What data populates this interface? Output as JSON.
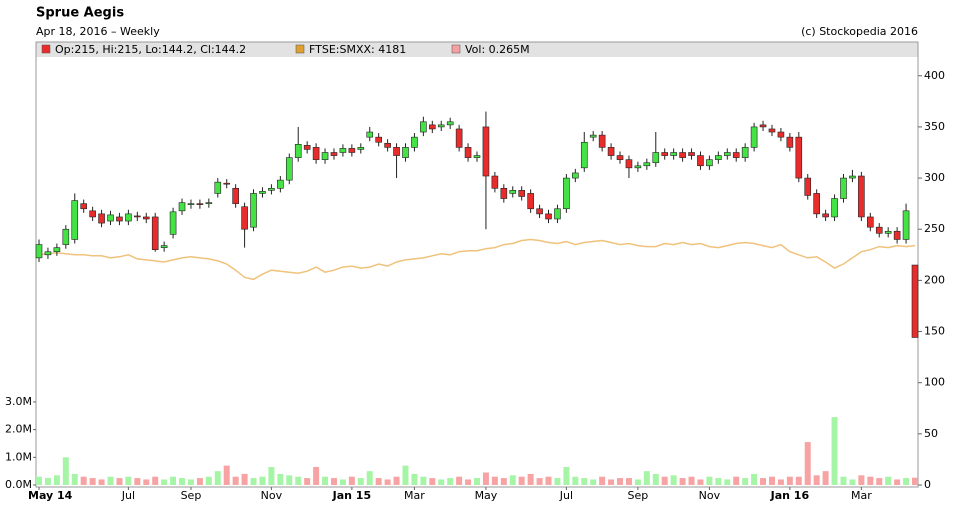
{
  "chart_data": {
    "type": "candlestick",
    "title": "Sprue Aegis",
    "subtitle": "Apr 18, 2016 – Weekly",
    "copyright": "(c) Stockopedia 2016",
    "legend": [
      {
        "label": "Op:215, Hi:215, Lo:144.2, Cl:144.2",
        "color": "#e82c2c"
      },
      {
        "label": "FTSE:SMXX: 4181",
        "color": "#e0a030"
      },
      {
        "label": "Vol: 0.265M",
        "color": "#f5a0a0"
      }
    ],
    "up_color": "#44e244",
    "down_color": "#e82c2c",
    "categories": [
      "May 14",
      null,
      null,
      null,
      null,
      null,
      null,
      null,
      null,
      null,
      "Jul",
      null,
      null,
      null,
      null,
      null,
      null,
      "Sep",
      null,
      null,
      null,
      null,
      null,
      null,
      null,
      null,
      "Nov",
      null,
      null,
      null,
      null,
      null,
      null,
      null,
      null,
      "Jan 15",
      null,
      null,
      null,
      null,
      null,
      null,
      "Mar",
      null,
      null,
      null,
      null,
      null,
      null,
      null,
      "May",
      null,
      null,
      null,
      null,
      null,
      null,
      null,
      null,
      "Jul",
      null,
      null,
      null,
      null,
      null,
      null,
      null,
      "Sep",
      null,
      null,
      null,
      null,
      null,
      null,
      null,
      "Nov",
      null,
      null,
      null,
      null,
      null,
      null,
      null,
      null,
      "Jan 16",
      null,
      null,
      null,
      null,
      null,
      null,
      null,
      "Mar",
      null,
      null,
      null,
      null,
      null,
      null
    ],
    "open": [
      222,
      225,
      228,
      235,
      240,
      275,
      268,
      265,
      258,
      262,
      258,
      263,
      262,
      262,
      232,
      245,
      268,
      274,
      275,
      275,
      285,
      295,
      290,
      272,
      252,
      285,
      288,
      290,
      298,
      320,
      332,
      330,
      318,
      325,
      325,
      329,
      328,
      340,
      340,
      334,
      330,
      320,
      330,
      345,
      352,
      350,
      352,
      348,
      330,
      320,
      350,
      302,
      290,
      285,
      288,
      285,
      270,
      265,
      260,
      270,
      300,
      310,
      340,
      342,
      330,
      322,
      318,
      310,
      312,
      315,
      325,
      322,
      325,
      325,
      322,
      312,
      318,
      322,
      325,
      320,
      330,
      352,
      348,
      345,
      340,
      340,
      300,
      285,
      265,
      262,
      280,
      300,
      302,
      262,
      252,
      246,
      248,
      240,
      215
    ],
    "high": [
      240,
      232,
      236,
      254,
      285,
      279,
      272,
      269,
      268,
      266,
      269,
      267,
      266,
      266,
      238,
      271,
      280,
      279,
      279,
      280,
      300,
      299,
      294,
      276,
      289,
      291,
      294,
      302,
      324,
      350,
      336,
      334,
      329,
      329,
      333,
      333,
      334,
      350,
      344,
      338,
      334,
      334,
      344,
      360,
      356,
      356,
      359,
      352,
      334,
      326,
      365,
      306,
      294,
      292,
      292,
      289,
      274,
      269,
      274,
      304,
      309,
      345,
      346,
      346,
      334,
      326,
      322,
      316,
      319,
      345,
      329,
      329,
      329,
      329,
      326,
      322,
      326,
      329,
      329,
      334,
      354,
      356,
      352,
      349,
      344,
      345,
      304,
      289,
      269,
      284,
      304,
      308,
      306,
      266,
      256,
      252,
      252,
      275,
      215
    ],
    "low": [
      218,
      221,
      224,
      231,
      236,
      266,
      258,
      252,
      254,
      254,
      254,
      258,
      256,
      228,
      228,
      241,
      264,
      270,
      270,
      271,
      281,
      290,
      271,
      232,
      248,
      281,
      284,
      286,
      294,
      316,
      324,
      314,
      314,
      318,
      321,
      321,
      324,
      336,
      331,
      326,
      300,
      316,
      326,
      341,
      344,
      346,
      348,
      326,
      316,
      316,
      250,
      286,
      276,
      281,
      278,
      266,
      261,
      256,
      256,
      266,
      296,
      306,
      336,
      326,
      318,
      314,
      300,
      306,
      308,
      311,
      318,
      318,
      316,
      318,
      308,
      308,
      314,
      318,
      316,
      316,
      326,
      346,
      341,
      336,
      326,
      296,
      279,
      261,
      258,
      258,
      276,
      296,
      258,
      248,
      242,
      242,
      236,
      236,
      144.2
    ],
    "close": [
      235,
      228,
      232,
      250,
      278,
      270,
      262,
      256,
      264,
      258,
      265,
      262,
      260,
      230,
      234,
      267,
      276,
      275,
      274,
      276,
      296,
      294,
      275,
      250,
      285,
      287,
      290,
      298,
      320,
      333,
      328,
      318,
      325,
      322,
      329,
      325,
      330,
      345,
      335,
      330,
      322,
      330,
      340,
      355,
      348,
      352,
      355,
      330,
      320,
      322,
      302,
      290,
      280,
      288,
      282,
      270,
      265,
      260,
      270,
      300,
      305,
      335,
      342,
      330,
      322,
      318,
      310,
      312,
      315,
      325,
      322,
      325,
      320,
      322,
      312,
      318,
      322,
      325,
      320,
      330,
      350,
      350,
      345,
      340,
      330,
      300,
      283,
      265,
      262,
      280,
      300,
      302,
      262,
      252,
      246,
      248,
      240,
      268,
      144.2
    ],
    "ylim": [
      0,
      433
    ],
    "yticks": [
      0,
      50,
      100,
      150,
      200,
      250,
      300,
      350,
      400
    ],
    "volume": {
      "up_color": "#a6f5a6",
      "down_color": "#f7a3a3",
      "ylim": [
        0,
        16000000
      ],
      "yticks": [
        {
          "value": 0,
          "label": "0.0M"
        },
        {
          "value": 1000000,
          "label": "1.0M"
        },
        {
          "value": 2000000,
          "label": "2.0M"
        },
        {
          "value": 3000000,
          "label": "3.0M"
        }
      ],
      "values": [
        300000,
        250000,
        350000,
        1000000,
        400000,
        300000,
        250000,
        200000,
        300000,
        250000,
        300000,
        250000,
        200000,
        300000,
        200000,
        300000,
        250000,
        200000,
        250000,
        300000,
        500000,
        700000,
        300000,
        400000,
        250000,
        300000,
        650000,
        400000,
        350000,
        300000,
        250000,
        650000,
        300000,
        250000,
        200000,
        300000,
        250000,
        500000,
        250000,
        200000,
        300000,
        700000,
        400000,
        300000,
        250000,
        200000,
        250000,
        300000,
        200000,
        250000,
        450000,
        300000,
        250000,
        350000,
        300000,
        400000,
        250000,
        300000,
        250000,
        650000,
        300000,
        250000,
        200000,
        300000,
        200000,
        250000,
        250000,
        200000,
        500000,
        400000,
        300000,
        350000,
        250000,
        300000,
        200000,
        300000,
        250000,
        200000,
        300000,
        250000,
        400000,
        250000,
        300000,
        200000,
        300000,
        300000,
        1550000,
        350000,
        500000,
        2450000,
        300000,
        200000,
        350000,
        300000,
        250000,
        300000,
        200000,
        250000,
        265000
      ]
    },
    "ftse": {
      "color": "#f0c27b",
      "values": [
        225,
        226,
        227,
        226,
        225,
        225,
        224,
        224,
        222,
        223,
        225,
        221,
        220,
        219,
        218,
        220,
        222,
        223,
        222,
        221,
        219,
        216,
        210,
        203,
        201,
        206,
        210,
        209,
        208,
        207,
        209,
        213,
        208,
        210,
        213,
        214,
        212,
        213,
        216,
        214,
        218,
        220,
        221,
        222,
        224,
        226,
        225,
        228,
        229,
        229,
        231,
        232,
        235,
        236,
        239,
        240,
        239,
        237,
        236,
        238,
        235,
        237,
        238,
        239,
        237,
        235,
        236,
        234,
        233,
        233,
        236,
        235,
        237,
        235,
        236,
        233,
        232,
        234,
        236,
        237,
        236,
        234,
        232,
        235,
        228,
        225,
        222,
        223,
        218,
        212,
        216,
        222,
        228,
        230,
        233,
        232,
        234,
        233,
        234
      ]
    }
  }
}
